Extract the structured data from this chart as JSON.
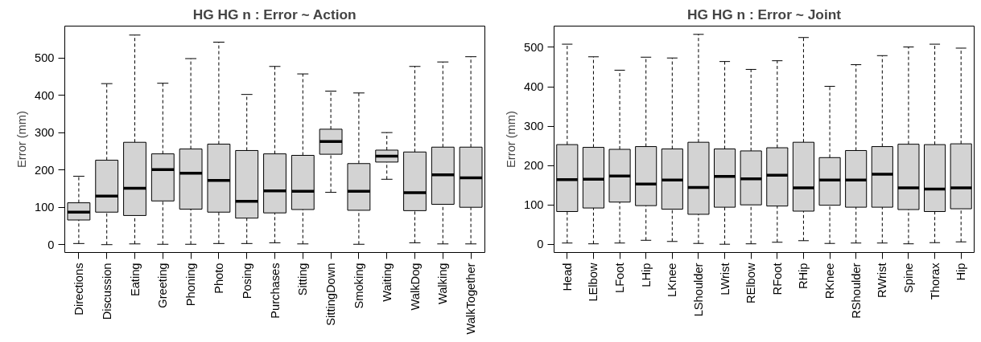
{
  "chart_data": [
    {
      "type": "box",
      "title": "HG HG n : Error ~ Action",
      "ylabel": "Error (mm)",
      "categories": [
        "Directions",
        "Discussion",
        "Eating",
        "Greeting",
        "Phoning",
        "Photo",
        "Posing",
        "Purchases",
        "Sitting",
        "SittingDown",
        "Smoking",
        "Waiting",
        "WalkDog",
        "Walking",
        "WalkTogether"
      ],
      "ylim": [
        -21,
        585
      ],
      "yticks": [
        0,
        100,
        200,
        300,
        400,
        500
      ],
      "grid": false,
      "color": "#d3d3d3",
      "boxes": [
        {
          "low": 3,
          "q1": 66,
          "median": 87,
          "q3": 112,
          "high": 183
        },
        {
          "low": 0,
          "q1": 87,
          "median": 130,
          "q3": 226,
          "high": 431
        },
        {
          "low": 2,
          "q1": 78,
          "median": 151,
          "q3": 274,
          "high": 561
        },
        {
          "low": 1,
          "q1": 117,
          "median": 201,
          "q3": 243,
          "high": 432
        },
        {
          "low": 1,
          "q1": 95,
          "median": 191,
          "q3": 256,
          "high": 498
        },
        {
          "low": 3,
          "q1": 87,
          "median": 172,
          "q3": 269,
          "high": 542
        },
        {
          "low": 3,
          "q1": 71,
          "median": 116,
          "q3": 252,
          "high": 402
        },
        {
          "low": 5,
          "q1": 85,
          "median": 144,
          "q3": 243,
          "high": 477
        },
        {
          "low": 2,
          "q1": 94,
          "median": 143,
          "q3": 239,
          "high": 457
        },
        {
          "low": 140,
          "q1": 242,
          "median": 276,
          "q3": 309,
          "high": 411
        },
        {
          "low": 1,
          "q1": 92,
          "median": 143,
          "q3": 217,
          "high": 406
        },
        {
          "low": 175,
          "q1": 221,
          "median": 237,
          "q3": 253,
          "high": 300
        },
        {
          "low": 5,
          "q1": 91,
          "median": 139,
          "q3": 248,
          "high": 477
        },
        {
          "low": 2,
          "q1": 108,
          "median": 187,
          "q3": 261,
          "high": 489
        },
        {
          "low": 2,
          "q1": 100,
          "median": 179,
          "q3": 261,
          "high": 503
        }
      ]
    },
    {
      "type": "box",
      "title": "HG HG n : Error ~ Joint",
      "ylabel": "Error (mm)",
      "categories": [
        "Head",
        "LElbow",
        "LFoot",
        "LHip",
        "LKnee",
        "LShoulder",
        "LWrist",
        "RElbow",
        "RFoot",
        "RHip",
        "RKnee",
        "RShoulder",
        "RWrist",
        "Spine",
        "Thorax",
        "Hip"
      ],
      "ylim": [
        -21,
        554
      ],
      "yticks": [
        0,
        100,
        200,
        300,
        400,
        500
      ],
      "grid": false,
      "color": "#d3d3d3",
      "boxes": [
        {
          "low": 3,
          "q1": 83,
          "median": 164,
          "q3": 253,
          "high": 508
        },
        {
          "low": 1,
          "q1": 92,
          "median": 165,
          "q3": 246,
          "high": 476
        },
        {
          "low": 3,
          "q1": 107,
          "median": 173,
          "q3": 241,
          "high": 442
        },
        {
          "low": 10,
          "q1": 98,
          "median": 153,
          "q3": 248,
          "high": 475
        },
        {
          "low": 7,
          "q1": 89,
          "median": 163,
          "q3": 242,
          "high": 473
        },
        {
          "low": 2,
          "q1": 76,
          "median": 144,
          "q3": 259,
          "high": 533
        },
        {
          "low": 0,
          "q1": 94,
          "median": 172,
          "q3": 242,
          "high": 464
        },
        {
          "low": 1,
          "q1": 100,
          "median": 166,
          "q3": 237,
          "high": 444
        },
        {
          "low": 5,
          "q1": 97,
          "median": 175,
          "q3": 245,
          "high": 466
        },
        {
          "low": 9,
          "q1": 84,
          "median": 143,
          "q3": 259,
          "high": 525
        },
        {
          "low": 2,
          "q1": 99,
          "median": 163,
          "q3": 220,
          "high": 401
        },
        {
          "low": 3,
          "q1": 94,
          "median": 163,
          "q3": 238,
          "high": 456
        },
        {
          "low": 3,
          "q1": 94,
          "median": 178,
          "q3": 248,
          "high": 479
        },
        {
          "low": 1,
          "q1": 88,
          "median": 143,
          "q3": 254,
          "high": 501
        },
        {
          "low": 4,
          "q1": 83,
          "median": 140,
          "q3": 253,
          "high": 508
        },
        {
          "low": 6,
          "q1": 90,
          "median": 143,
          "q3": 255,
          "high": 498
        }
      ]
    }
  ]
}
